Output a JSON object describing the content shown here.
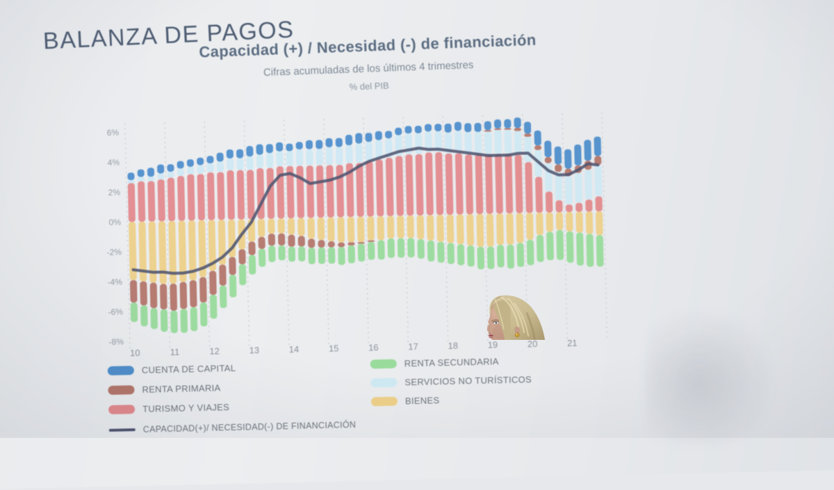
{
  "slide": {
    "title": "BALANZA DE PAGOS",
    "chart_title": "Capacidad (+) / Necesidad (-) de financiación",
    "chart_subtitle": "Cifras acumuladas de los últimos 4 trimestres",
    "chart_unit": "% del PIB"
  },
  "chart_data": {
    "type": "bar",
    "stacked": true,
    "x_unit": "quarters (2010Q1 – 2021Q4)",
    "year_labels": [
      "10",
      "11",
      "12",
      "13",
      "14",
      "15",
      "16",
      "17",
      "18",
      "19",
      "20",
      "21"
    ],
    "yticks": [
      6,
      4,
      2,
      0,
      -2,
      -4,
      -6,
      -8
    ],
    "ytick_labels": [
      "6%",
      "4%",
      "2%",
      "0%",
      "-2%",
      "-4%",
      "-6%",
      "-8%"
    ],
    "ylim": [
      -8,
      7
    ],
    "grid": "dashed vertical lines at each year",
    "legend_position": "bottom",
    "stack_order": [
      "BIENES",
      "TURISMO Y VIAJES",
      "SERVICIOS NO TURÍSTICOS",
      "RENTA PRIMARIA",
      "RENTA SECUNDARIA",
      "CUENTA DE CAPITAL"
    ],
    "series": [
      {
        "name": "BIENES",
        "color": "#edd089",
        "values": [
          -3.9,
          -4.0,
          -4.1,
          -4.2,
          -4.2,
          -4.1,
          -4.0,
          -3.8,
          -3.4,
          -3.0,
          -2.5,
          -2.0,
          -1.5,
          -1.2,
          -1.0,
          -1.0,
          -1.1,
          -1.2,
          -1.4,
          -1.5,
          -1.6,
          -1.7,
          -1.7,
          -1.7,
          -1.6,
          -1.6,
          -1.5,
          -1.5,
          -1.5,
          -1.6,
          -1.7,
          -1.8,
          -1.9,
          -2.0,
          -2.1,
          -2.2,
          -2.2,
          -2.1,
          -2.1,
          -2.0,
          -1.8,
          -1.5,
          -1.3,
          -1.2,
          -1.3,
          -1.4,
          -1.5,
          -1.6
        ]
      },
      {
        "name": "TURISMO Y VIAJES",
        "color": "#e38a8d",
        "values": [
          2.6,
          2.7,
          2.7,
          2.8,
          2.9,
          3.0,
          3.1,
          3.1,
          3.2,
          3.2,
          3.3,
          3.3,
          3.3,
          3.4,
          3.4,
          3.5,
          3.5,
          3.5,
          3.5,
          3.5,
          3.5,
          3.5,
          3.6,
          3.6,
          3.7,
          3.8,
          3.9,
          4.0,
          4.1,
          4.1,
          4.2,
          4.2,
          4.1,
          4.1,
          4.0,
          4.0,
          4.0,
          4.0,
          4.0,
          3.9,
          3.4,
          2.4,
          1.4,
          0.8,
          0.5,
          0.6,
          0.8,
          1.0
        ]
      },
      {
        "name": "SERVICIOS NO TURÍSTICOS",
        "color": "#cfe9f3",
        "values": [
          0.2,
          0.3,
          0.3,
          0.4,
          0.4,
          0.5,
          0.5,
          0.6,
          0.6,
          0.7,
          0.8,
          0.8,
          0.9,
          0.9,
          1.0,
          1.0,
          1.0,
          1.1,
          1.1,
          1.1,
          1.2,
          1.2,
          1.2,
          1.3,
          1.3,
          1.3,
          1.3,
          1.4,
          1.4,
          1.4,
          1.4,
          1.4,
          1.4,
          1.5,
          1.5,
          1.5,
          1.5,
          1.6,
          1.6,
          1.6,
          1.7,
          1.8,
          1.9,
          1.9,
          1.9,
          2.0,
          2.0,
          2.1
        ]
      },
      {
        "name": "RENTA PRIMARIA",
        "color": "#b4766a",
        "values": [
          -1.5,
          -1.6,
          -1.7,
          -1.7,
          -1.8,
          -1.8,
          -1.8,
          -1.7,
          -1.6,
          -1.4,
          -1.2,
          -1.0,
          -0.9,
          -0.8,
          -0.8,
          -0.8,
          -0.8,
          -0.7,
          -0.6,
          -0.5,
          -0.4,
          -0.3,
          -0.2,
          -0.1,
          -0.1,
          0.0,
          0.0,
          0.0,
          0.0,
          0.0,
          0.0,
          0.0,
          0.0,
          0.0,
          0.0,
          0.0,
          0.1,
          0.1,
          0.1,
          0.2,
          0.2,
          0.3,
          0.4,
          0.5,
          0.5,
          0.5,
          0.6,
          0.6
        ]
      },
      {
        "name": "RENTA SECUNDARIA",
        "color": "#99db9b",
        "values": [
          -1.3,
          -1.4,
          -1.4,
          -1.5,
          -1.5,
          -1.6,
          -1.6,
          -1.6,
          -1.6,
          -1.5,
          -1.5,
          -1.4,
          -1.3,
          -1.2,
          -1.1,
          -1.0,
          -1.0,
          -1.0,
          -1.1,
          -1.1,
          -1.1,
          -1.2,
          -1.2,
          -1.2,
          -1.2,
          -1.3,
          -1.3,
          -1.3,
          -1.3,
          -1.3,
          -1.4,
          -1.4,
          -1.4,
          -1.4,
          -1.4,
          -1.5,
          -1.5,
          -1.5,
          -1.6,
          -1.6,
          -1.7,
          -1.8,
          -1.9,
          -2.0,
          -2.1,
          -2.2,
          -2.2,
          -2.1
        ]
      },
      {
        "name": "CUENTA DE CAPITAL",
        "color": "#4f8fcc",
        "values": [
          0.5,
          0.5,
          0.6,
          0.6,
          0.5,
          0.5,
          0.5,
          0.5,
          0.5,
          0.6,
          0.6,
          0.6,
          0.7,
          0.7,
          0.6,
          0.6,
          0.5,
          0.5,
          0.6,
          0.6,
          0.6,
          0.6,
          0.7,
          0.7,
          0.6,
          0.6,
          0.5,
          0.5,
          0.5,
          0.5,
          0.5,
          0.5,
          0.6,
          0.6,
          0.6,
          0.6,
          0.6,
          0.6,
          0.6,
          0.7,
          0.8,
          1.0,
          1.1,
          1.2,
          1.3,
          1.4,
          1.4,
          1.3
        ]
      }
    ],
    "line_series": {
      "name": "CAPACIDAD(+)/ NECESIDAD(-) DE FINANCIACIÓN",
      "color": "#4e5470",
      "values": [
        -3.2,
        -3.3,
        -3.4,
        -3.4,
        -3.5,
        -3.5,
        -3.4,
        -3.2,
        -2.9,
        -2.5,
        -1.9,
        -1.0,
        -0.2,
        1.0,
        2.2,
        2.9,
        3.0,
        2.7,
        2.3,
        2.4,
        2.5,
        2.7,
        3.0,
        3.4,
        3.7,
        3.9,
        4.1,
        4.3,
        4.4,
        4.5,
        4.4,
        4.4,
        4.3,
        4.2,
        4.1,
        4.0,
        3.9,
        3.9,
        3.9,
        4.0,
        4.0,
        3.4,
        2.8,
        2.5,
        2.5,
        2.8,
        3.2,
        3.1
      ]
    }
  },
  "legend": {
    "left": [
      {
        "label": "CUENTA DE CAPITAL",
        "color": "#4f8fcc",
        "type": "swatch"
      },
      {
        "label": "RENTA PRIMARIA",
        "color": "#b4766a",
        "type": "swatch"
      },
      {
        "label": "TURISMO Y VIAJES",
        "color": "#e38a8d",
        "type": "swatch"
      },
      {
        "label": "CAPACIDAD(+)/ NECESIDAD(-) DE FINANCIACIÓN",
        "color": "#4e5470",
        "type": "line"
      }
    ],
    "right": [
      {
        "label": "RENTA SECUNDARIA",
        "color": "#99db9b",
        "type": "swatch"
      },
      {
        "label": "SERVICIOS NO TURÍSTICOS",
        "color": "#cfe9f3",
        "type": "swatch"
      },
      {
        "label": "BIENES",
        "color": "#edd089",
        "type": "swatch"
      }
    ]
  },
  "colors": {
    "screen_background": "#e9ebee",
    "slide_title": "#4e5d73",
    "chart_title": "#5c6d82",
    "axis_labels": "#8d939c",
    "gridline": "#c9ccd3"
  },
  "presenter": {
    "hair_color": "#c9ba90",
    "hair_shadow": "#a8966d",
    "hair_highlight": "#ece0b8",
    "skin_color": "#c9a28f",
    "lip_color": "#a04e59",
    "earring_color": "#c89c38"
  }
}
